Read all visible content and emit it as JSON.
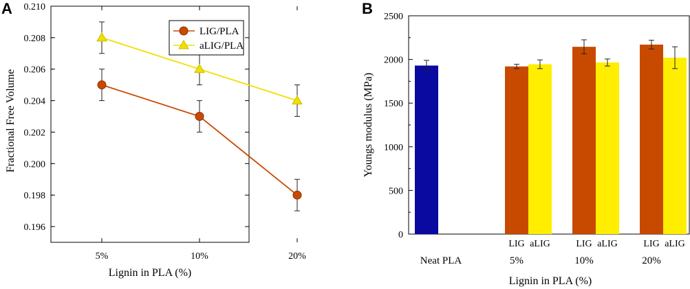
{
  "chart_data": [
    {
      "panel": "A",
      "type": "line",
      "title": "",
      "xlabel": "Lignin in PLA (%)",
      "ylabel": "Fractional Free Volume",
      "categories": [
        "5%",
        "10%",
        "20%"
      ],
      "ylim": [
        0.195,
        0.21
      ],
      "yticks": [
        0.196,
        0.198,
        0.2,
        0.202,
        0.204,
        0.206,
        0.208,
        0.21
      ],
      "ytick_labels": [
        "0.196",
        "0.198",
        "0.200",
        "0.202",
        "0.204",
        "0.206",
        "0.208",
        "0.210"
      ],
      "legend_position": "top-right",
      "series": [
        {
          "name": "LIG/PLA",
          "marker": "circle",
          "color": "#c84a00",
          "values": [
            0.205,
            0.203,
            0.198
          ],
          "errors": [
            0.001,
            0.001,
            0.001
          ]
        },
        {
          "name": "aLIG/PLA",
          "marker": "triangle",
          "color": "#f0e000",
          "values": [
            0.208,
            0.206,
            0.204
          ],
          "errors": [
            0.001,
            0.001,
            0.001
          ]
        }
      ]
    },
    {
      "panel": "B",
      "type": "bar",
      "title": "",
      "xlabel": "Lignin in PLA (%)",
      "ylabel": "Youngs modulus (MPa)",
      "ylim": [
        0,
        2500
      ],
      "yticks": [
        0,
        500,
        1000,
        1500,
        2000,
        2500
      ],
      "ytick_labels": [
        "0",
        "500",
        "1000",
        "1500",
        "2000",
        "2500"
      ],
      "groups": [
        "Neat PLA",
        "5%",
        "10%",
        "20%"
      ],
      "bar_labels": [
        "LIG",
        "aLIG"
      ],
      "bars": [
        {
          "group": "Neat PLA",
          "label": "",
          "value": 1930,
          "error": 60,
          "color": "#0a0aa0"
        },
        {
          "group": "5%",
          "label": "LIG",
          "value": 1920,
          "error": 25,
          "color": "#c84a00"
        },
        {
          "group": "5%",
          "label": "aLIG",
          "value": 1945,
          "error": 50,
          "color": "#ffee00"
        },
        {
          "group": "10%",
          "label": "LIG",
          "value": 2145,
          "error": 80,
          "color": "#c84a00"
        },
        {
          "group": "10%",
          "label": "aLIG",
          "value": 1965,
          "error": 40,
          "color": "#ffee00"
        },
        {
          "group": "20%",
          "label": "LIG",
          "value": 2170,
          "error": 50,
          "color": "#c84a00"
        },
        {
          "group": "20%",
          "label": "aLIG",
          "value": 2020,
          "error": 125,
          "color": "#ffee00"
        }
      ]
    }
  ]
}
